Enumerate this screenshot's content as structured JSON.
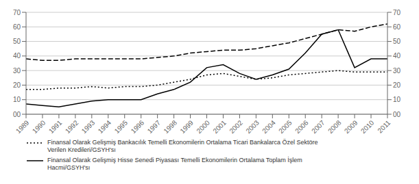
{
  "chart_data": {
    "type": "line",
    "x": [
      1989,
      1990,
      1991,
      1992,
      1993,
      1994,
      1995,
      1996,
      1997,
      1998,
      1999,
      2000,
      2001,
      2002,
      2003,
      2004,
      2005,
      2006,
      2007,
      2008,
      2009,
      2010,
      2011
    ],
    "xlim": [
      1989,
      2011
    ],
    "xticks": [
      1989,
      1990,
      1991,
      1992,
      1993,
      1994,
      1995,
      1996,
      1997,
      1998,
      1999,
      2000,
      2001,
      2002,
      2003,
      2004,
      2005,
      2006,
      2007,
      2008,
      2009,
      2010,
      2011
    ],
    "ylim": [
      0,
      70
    ],
    "yticks": [
      {
        "value": 0,
        "label": "00"
      },
      10,
      20,
      30,
      40,
      50,
      60,
      70
    ],
    "y2lim": [
      0,
      70
    ],
    "y2ticks": [
      {
        "value": 0,
        "label": "00"
      },
      10,
      20,
      30,
      40,
      50,
      60,
      70
    ],
    "grid": true,
    "legend": "lower left",
    "series": [
      {
        "name": "Finansal Olarak Gelişmiş Bankacılık Temelli Ekonomilerin Ortalama Ticari Bankalarca Özel Sektöre\nVerilen Kredileri/GSYH'sı",
        "color": "#000000",
        "line_style": "dotted",
        "values": [
          17,
          17,
          18,
          18,
          19,
          18,
          19,
          19,
          20,
          22,
          24,
          27,
          28,
          26,
          24,
          25,
          27,
          28,
          29,
          30,
          29,
          29,
          29
        ]
      },
      {
        "name": "Finansal Olarak Gelişmiş Hisse Senedi Piyasası Temelli Ekonomilerin Ortalama Toplam İşlem\nHacmi/GSYH'sı",
        "color": "#000000",
        "line_style": "solid",
        "values": [
          7,
          6,
          5,
          7,
          9,
          10,
          10,
          10,
          14,
          17,
          22,
          32,
          34,
          28,
          24,
          27,
          31,
          42,
          55,
          58,
          32,
          38,
          38
        ]
      },
      {
        "color": "#000000",
        "line_style": "dashed",
        "axis": "y2",
        "values": [
          38,
          37,
          37,
          38,
          38,
          38,
          38,
          38,
          39,
          40,
          42,
          43,
          44,
          44,
          45,
          47,
          49,
          52,
          55,
          58,
          57,
          60,
          62
        ]
      }
    ]
  }
}
